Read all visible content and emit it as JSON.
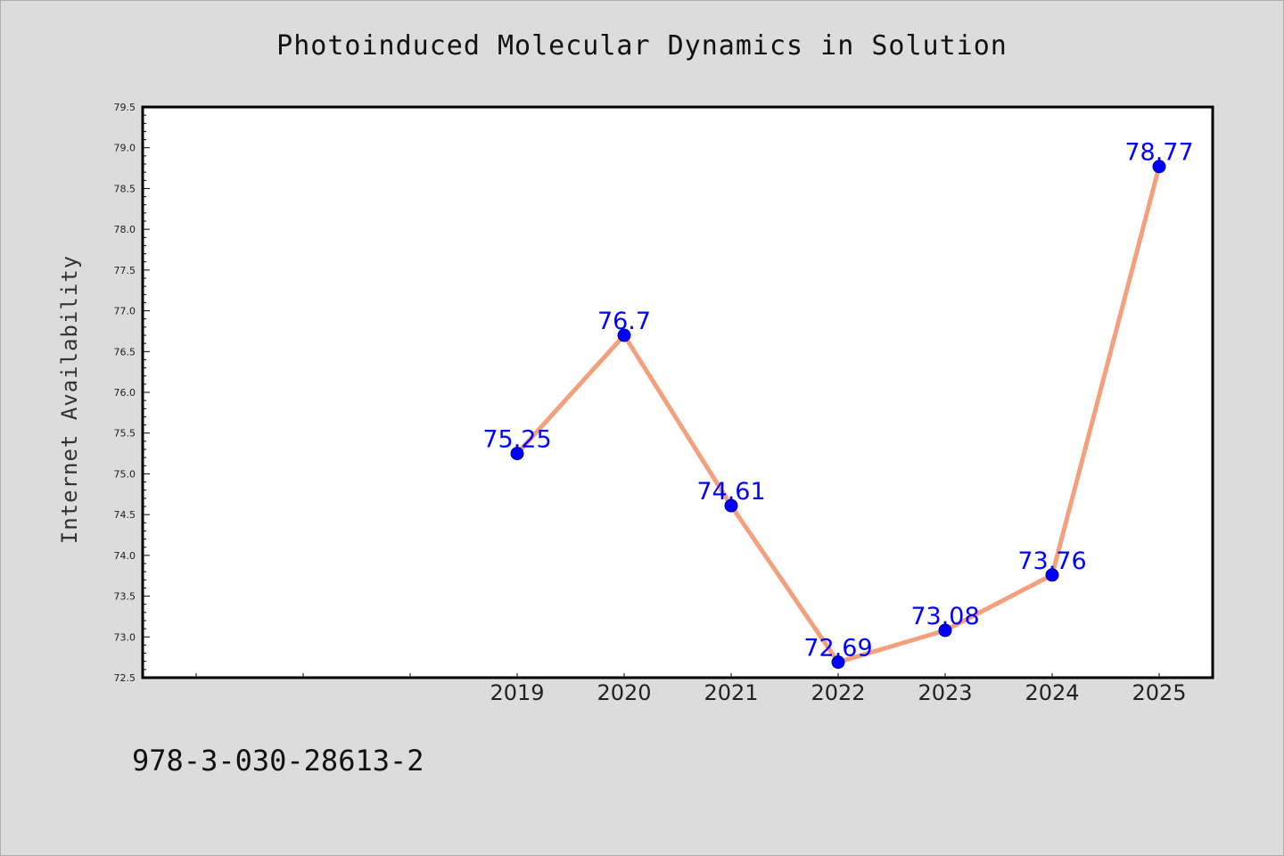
{
  "chart_data": {
    "type": "line",
    "title": "Photoinduced Molecular Dynamics in Solution",
    "xlabel": "",
    "ylabel": "Internet Availability",
    "categories": [
      "2019",
      "2020",
      "2021",
      "2022",
      "2023",
      "2024",
      "2025"
    ],
    "series": [
      {
        "values": [
          75.25,
          76.7,
          74.61,
          72.69,
          73.08,
          73.76,
          78.77
        ]
      }
    ],
    "data_labels": [
      "75.25",
      "76.7",
      "74.61",
      "72.69",
      "73.08",
      "73.76",
      "78.77"
    ],
    "ylim": [
      72.5,
      79.5
    ],
    "y_ticks": [
      "72.5",
      "73.0",
      "73.5",
      "74.0",
      "74.5",
      "75.0",
      "75.5",
      "76.0",
      "76.5",
      "77.0",
      "77.5",
      "78.0",
      "78.5",
      "79.0",
      "79.5"
    ],
    "x_axis_slots": 10,
    "grid": false,
    "colors": {
      "line": "#f4a07c",
      "marker": "#0000ff",
      "data_label": "#0000ff",
      "background": "#dcdcdc",
      "plot_area": "#ffffff"
    }
  },
  "footnote": "978-3-030-28613-2"
}
